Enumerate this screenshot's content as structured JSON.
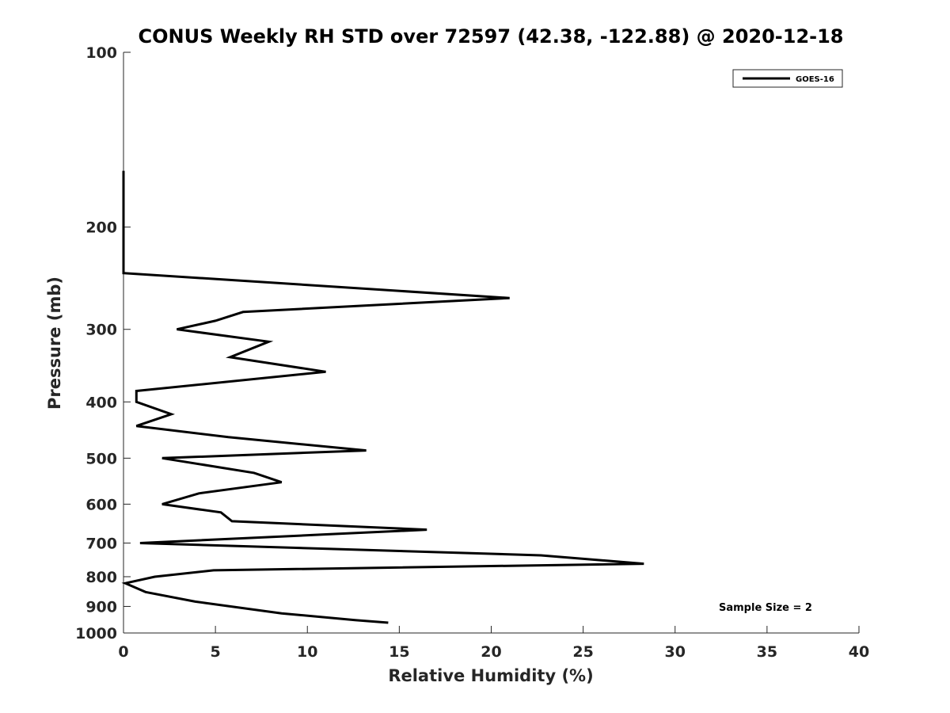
{
  "chart_data": {
    "type": "line",
    "title": "CONUS Weekly RH STD over 72597 (42.38, -122.88) @ 2020-12-18",
    "xlabel": "Relative Humidity (%)",
    "ylabel": "Pressure (mb)",
    "xlim": [
      0,
      40
    ],
    "ylim": [
      100,
      1000
    ],
    "yscale": "log",
    "yreversed": true,
    "grid": false,
    "xticks": [
      "0",
      "5",
      "10",
      "15",
      "20",
      "25",
      "30",
      "35",
      "40"
    ],
    "yticks": [
      "100",
      "200",
      "300",
      "400",
      "500",
      "600",
      "700",
      "800",
      "900",
      "1000"
    ],
    "legend": {
      "position": "top-right",
      "entries": [
        "GOES-16"
      ]
    },
    "annotation": "Sample Size = 2",
    "series": [
      {
        "name": "GOES-16",
        "color": "#000000",
        "x": [
          0,
          0,
          0,
          0,
          21.0,
          6.5,
          5.0,
          2.9,
          7.9,
          5.8,
          11.0,
          0.7,
          0.7,
          0.7,
          2.6,
          0.7,
          5.7,
          13.2,
          2.1,
          7.1,
          8.6,
          4.1,
          2.1,
          5.3,
          5.9,
          16.5,
          10.8,
          0.9,
          22.7,
          28.3,
          4.9,
          1.7,
          0.1,
          1.2,
          3.9,
          8.6,
          12.6,
          14.4
        ],
        "y": [
          160,
          200,
          230,
          240,
          265,
          280,
          290,
          300,
          315,
          335,
          355,
          383,
          395,
          400,
          420,
          440,
          460,
          485,
          500,
          530,
          550,
          575,
          600,
          620,
          642,
          664,
          677,
          700,
          735,
          760,
          780,
          800,
          821,
          850,
          883,
          925,
          950,
          960
        ]
      }
    ]
  }
}
